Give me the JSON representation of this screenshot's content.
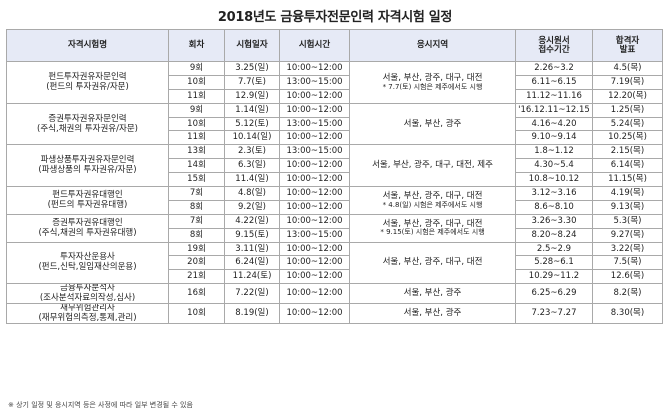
{
  "title": "2018년도 금융투자전문인력 자격시험 일정",
  "headers": {
    "cert": "자격시험명",
    "round": "회차",
    "date": "시험일자",
    "time": "시험시간",
    "region": "응시지역",
    "apply_line1": "응시원서",
    "apply_line2": "접수기간",
    "result_line1": "합격자",
    "result_line2": "발표"
  },
  "groups": [
    {
      "name": "펀드투자권유자문인력",
      "sub": "(펀드의 투자권유/자문)",
      "region_main": "서울, 부산, 광주, 대구, 대전",
      "region_note": "* 7.7(토) 시험은 제주에서도 시행",
      "rows": [
        {
          "round": "9회",
          "date": "3.25(일)",
          "time": "10:00~12:00",
          "apply": "2.26~3.2",
          "result": "4.5(목)"
        },
        {
          "round": "10회",
          "date": "7.7(토)",
          "time": "13:00~15:00",
          "apply": "6.11~6.15",
          "result": "7.19(목)"
        },
        {
          "round": "11회",
          "date": "12.9(일)",
          "time": "10:00~12:00",
          "apply": "11.12~11.16",
          "result": "12.20(목)"
        }
      ]
    },
    {
      "name": "증권투자권유자문인력",
      "sub": "(주식,채권의 투자권유/자문)",
      "region_main": "서울, 부산, 광주",
      "region_note": "",
      "rows": [
        {
          "round": "9회",
          "date": "1.14(일)",
          "time": "10:00~12:00",
          "apply": "'16.12.11~12.15",
          "result": "1.25(목)"
        },
        {
          "round": "10회",
          "date": "5.12(토)",
          "time": "13:00~15:00",
          "apply": "4.16~4.20",
          "result": "5.24(목)"
        },
        {
          "round": "11회",
          "date": "10.14(일)",
          "time": "10:00~12:00",
          "apply": "9.10~9.14",
          "result": "10.25(목)"
        }
      ]
    },
    {
      "name": "파생상품투자권유자문인력",
      "sub": "(파생상품의 투자권유/자문)",
      "region_main": "서울, 부산, 광주, 대구, 대전, 제주",
      "region_note": "",
      "rows": [
        {
          "round": "13회",
          "date": "2.3(토)",
          "time": "13:00~15:00",
          "apply": "1.8~1.12",
          "result": "2.15(목)"
        },
        {
          "round": "14회",
          "date": "6.3(일)",
          "time": "10:00~12:00",
          "apply": "4.30~5.4",
          "result": "6.14(목)"
        },
        {
          "round": "15회",
          "date": "11.4(일)",
          "time": "10:00~12:00",
          "apply": "10.8~10.12",
          "result": "11.15(목)"
        }
      ]
    },
    {
      "name": "펀드투자권유대행인",
      "sub": "(펀드의 투자권유대행)",
      "region_main": "서울, 부산, 광주, 대구, 대전",
      "region_note": "* 4.8(일) 시험은 제주에서도 시행",
      "rows": [
        {
          "round": "7회",
          "date": "4.8(일)",
          "time": "10:00~12:00",
          "apply": "3.12~3.16",
          "result": "4.19(목)"
        },
        {
          "round": "8회",
          "date": "9.2(일)",
          "time": "10:00~12:00",
          "apply": "8.6~8.10",
          "result": "9.13(목)"
        }
      ]
    },
    {
      "name": "증권투자권유대행인",
      "sub": "(주식,채권의 투자권유대행)",
      "region_main": "서울, 부산, 광주, 대구, 대전",
      "region_note": "* 9.15(토) 시험은 제주에서도 시행",
      "rows": [
        {
          "round": "7회",
          "date": "4.22(일)",
          "time": "10:00~12:00",
          "apply": "3.26~3.30",
          "result": "5.3(목)"
        },
        {
          "round": "8회",
          "date": "9.15(토)",
          "time": "13:00~15:00",
          "apply": "8.20~8.24",
          "result": "9.27(목)"
        }
      ]
    },
    {
      "name": "투자자산운용사",
      "sub": "(펀드,신탁,일임재산의운용)",
      "region_main": "서울, 부산, 광주, 대구, 대전",
      "region_note": "",
      "rows": [
        {
          "round": "19회",
          "date": "3.11(일)",
          "time": "10:00~12:00",
          "apply": "2.5~2.9",
          "result": "3.22(목)"
        },
        {
          "round": "20회",
          "date": "6.24(일)",
          "time": "10:00~12:00",
          "apply": "5.28~6.1",
          "result": "7.5(목)"
        },
        {
          "round": "21회",
          "date": "11.24(토)",
          "time": "10:00~12:00",
          "apply": "10.29~11.2",
          "result": "12.6(목)"
        }
      ]
    },
    {
      "name": "금융투자분석사",
      "sub": "(조사분석자료의작성,심사)",
      "region_main": "서울, 부산, 광주",
      "region_note": "",
      "rows": [
        {
          "round": "16회",
          "date": "7.22(일)",
          "time": "10:00~12:00",
          "apply": "6.25~6.29",
          "result": "8.2(목)"
        }
      ]
    },
    {
      "name": "재무위험관리사",
      "sub": "(재무위험의측정,통제,관리)",
      "region_main": "서울, 부산, 광주",
      "region_note": "",
      "rows": [
        {
          "round": "10회",
          "date": "8.19(일)",
          "time": "10:00~12:00",
          "apply": "7.23~7.27",
          "result": "8.30(목)"
        }
      ]
    }
  ],
  "footnote": "※ 상기 일정 및 응시지역 등은 사정에 따라 일부 변경될 수 있음"
}
